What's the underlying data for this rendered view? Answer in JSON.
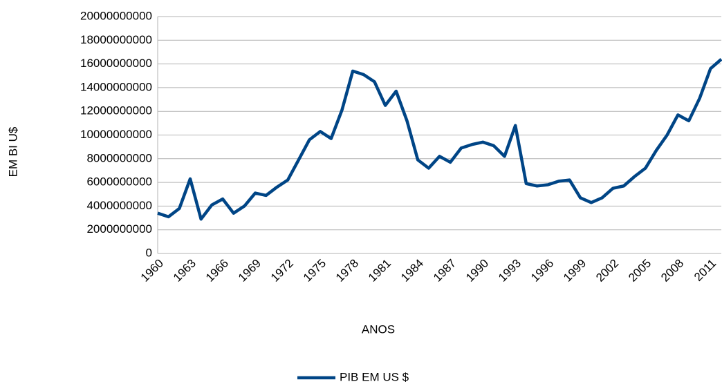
{
  "chart_data": {
    "type": "line",
    "categories": [
      "1960",
      null,
      null,
      "1963",
      null,
      null,
      "1966",
      null,
      null,
      "1969",
      null,
      null,
      "1972",
      null,
      null,
      "1975",
      null,
      null,
      "1978",
      null,
      null,
      "1981",
      null,
      null,
      "1984",
      null,
      null,
      "1987",
      null,
      null,
      "1990",
      null,
      null,
      "1993",
      null,
      null,
      "1996",
      null,
      null,
      "1999",
      null,
      null,
      "2002",
      null,
      null,
      "2005",
      null,
      null,
      "2008",
      null,
      null,
      "2011",
      null
    ],
    "series": [
      {
        "name": "PIB EM US $",
        "color": "#004586",
        "values": [
          3400000000,
          3100000000,
          3800000000,
          6300000000,
          2900000000,
          4100000000,
          4600000000,
          3400000000,
          4000000000,
          5100000000,
          4900000000,
          5600000000,
          6200000000,
          7900000000,
          9600000000,
          10300000000,
          9700000000,
          12100000000,
          15400000000,
          15100000000,
          14500000000,
          12500000000,
          13700000000,
          11200000000,
          7900000000,
          7200000000,
          8200000000,
          7700000000,
          8900000000,
          9200000000,
          9400000000,
          9100000000,
          8200000000,
          10800000000,
          5900000000,
          5700000000,
          5800000000,
          6100000000,
          6200000000,
          4700000000,
          4300000000,
          4700000000,
          5500000000,
          5700000000,
          6500000000,
          7200000000,
          8700000000,
          10000000000,
          11700000000,
          11200000000,
          13100000000,
          15600000000,
          16400000000
        ]
      }
    ],
    "x_label": "ANOS",
    "y_label": "EM BI U$",
    "ylim": [
      0,
      20000000000
    ],
    "yticks": [
      0,
      2000000000,
      4000000000,
      6000000000,
      8000000000,
      10000000000,
      12000000000,
      14000000000,
      16000000000,
      18000000000,
      20000000000
    ],
    "grid": true,
    "legend": "bottom"
  }
}
